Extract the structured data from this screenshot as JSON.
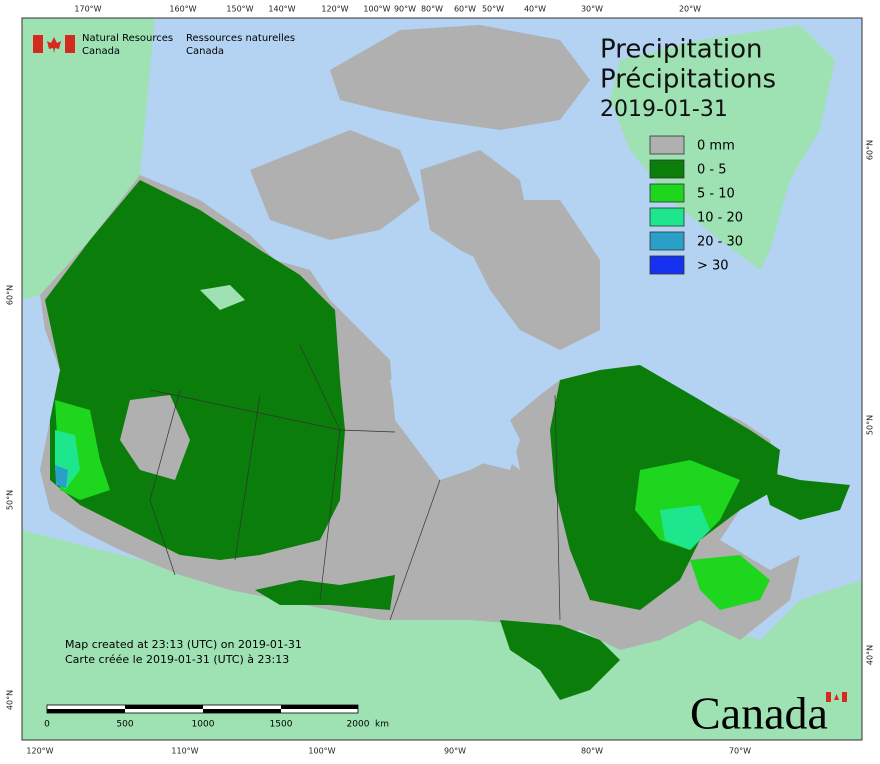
{
  "header": {
    "org_en": [
      "Natural Resources",
      "Canada"
    ],
    "org_fr": [
      "Ressources naturelles",
      "Canada"
    ]
  },
  "title": [
    "Precipitation",
    "Précipitations"
  ],
  "date": "2019-01-31",
  "legend": [
    {
      "label": "0 mm",
      "color": "#b0b0b0"
    },
    {
      "label": "0 - 5",
      "color": "#0a7d0a"
    },
    {
      "label": "5 - 10",
      "color": "#1ed61e"
    },
    {
      "label": "10 - 20",
      "color": "#1ee68c"
    },
    {
      "label": "20 - 30",
      "color": "#2aa0c8"
    },
    {
      "label": "> 30",
      "color": "#1432f0"
    }
  ],
  "notes": [
    "Map created at 23:13 (UTC) on 2019-01-31",
    "Carte créée le 2019-01-31 (UTC) à 23:13"
  ],
  "scale": {
    "ticks": [
      "0",
      "500",
      "1000",
      "1500",
      "2000"
    ],
    "unit": "km"
  },
  "graticule": {
    "top": [
      "170°W",
      "160°W",
      "150°W",
      "140°W",
      "120°W",
      "100°W",
      "90°W",
      "80°W",
      "60°W",
      "50°W",
      "40°W",
      "30°W",
      "20°W"
    ],
    "bottom": [
      "120°W",
      "110°W",
      "100°W",
      "90°W",
      "80°W",
      "70°W"
    ],
    "left": [
      "60°N",
      "50°N",
      "40°N"
    ],
    "right": [
      "60°N",
      "50°N",
      "40°N"
    ]
  },
  "wordmark": "Canada"
}
